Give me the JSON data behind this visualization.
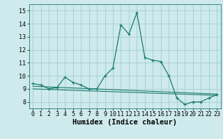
{
  "title": "",
  "xlabel": "Humidex (Indice chaleur)",
  "background_color": "#ceeaec",
  "grid_color": "#aad4d8",
  "line_color": "#1a7a6e",
  "xlim": [
    -0.5,
    23.5
  ],
  "ylim": [
    7.5,
    15.5
  ],
  "yticks": [
    8,
    9,
    10,
    11,
    12,
    13,
    14,
    15
  ],
  "xticks": [
    0,
    1,
    2,
    3,
    4,
    5,
    6,
    7,
    8,
    9,
    10,
    11,
    12,
    13,
    14,
    15,
    16,
    17,
    18,
    19,
    20,
    21,
    22,
    23
  ],
  "main_x": [
    0,
    1,
    2,
    3,
    4,
    5,
    6,
    7,
    8,
    9,
    10,
    11,
    12,
    13,
    14,
    15,
    16,
    17,
    18,
    19,
    20,
    21,
    22,
    23
  ],
  "main_y": [
    9.4,
    9.3,
    9.0,
    9.1,
    9.9,
    9.5,
    9.3,
    9.0,
    9.0,
    10.0,
    10.6,
    13.9,
    13.2,
    14.85,
    11.4,
    11.2,
    11.1,
    10.0,
    8.3,
    7.8,
    8.0,
    8.0,
    8.3,
    8.55
  ],
  "line1_x": [
    0,
    23
  ],
  "line1_y": [
    9.2,
    8.6
  ],
  "line2_x": [
    0,
    23
  ],
  "line2_y": [
    9.0,
    8.5
  ],
  "fontsize_ticks": 6,
  "fontsize_label": 7.5
}
